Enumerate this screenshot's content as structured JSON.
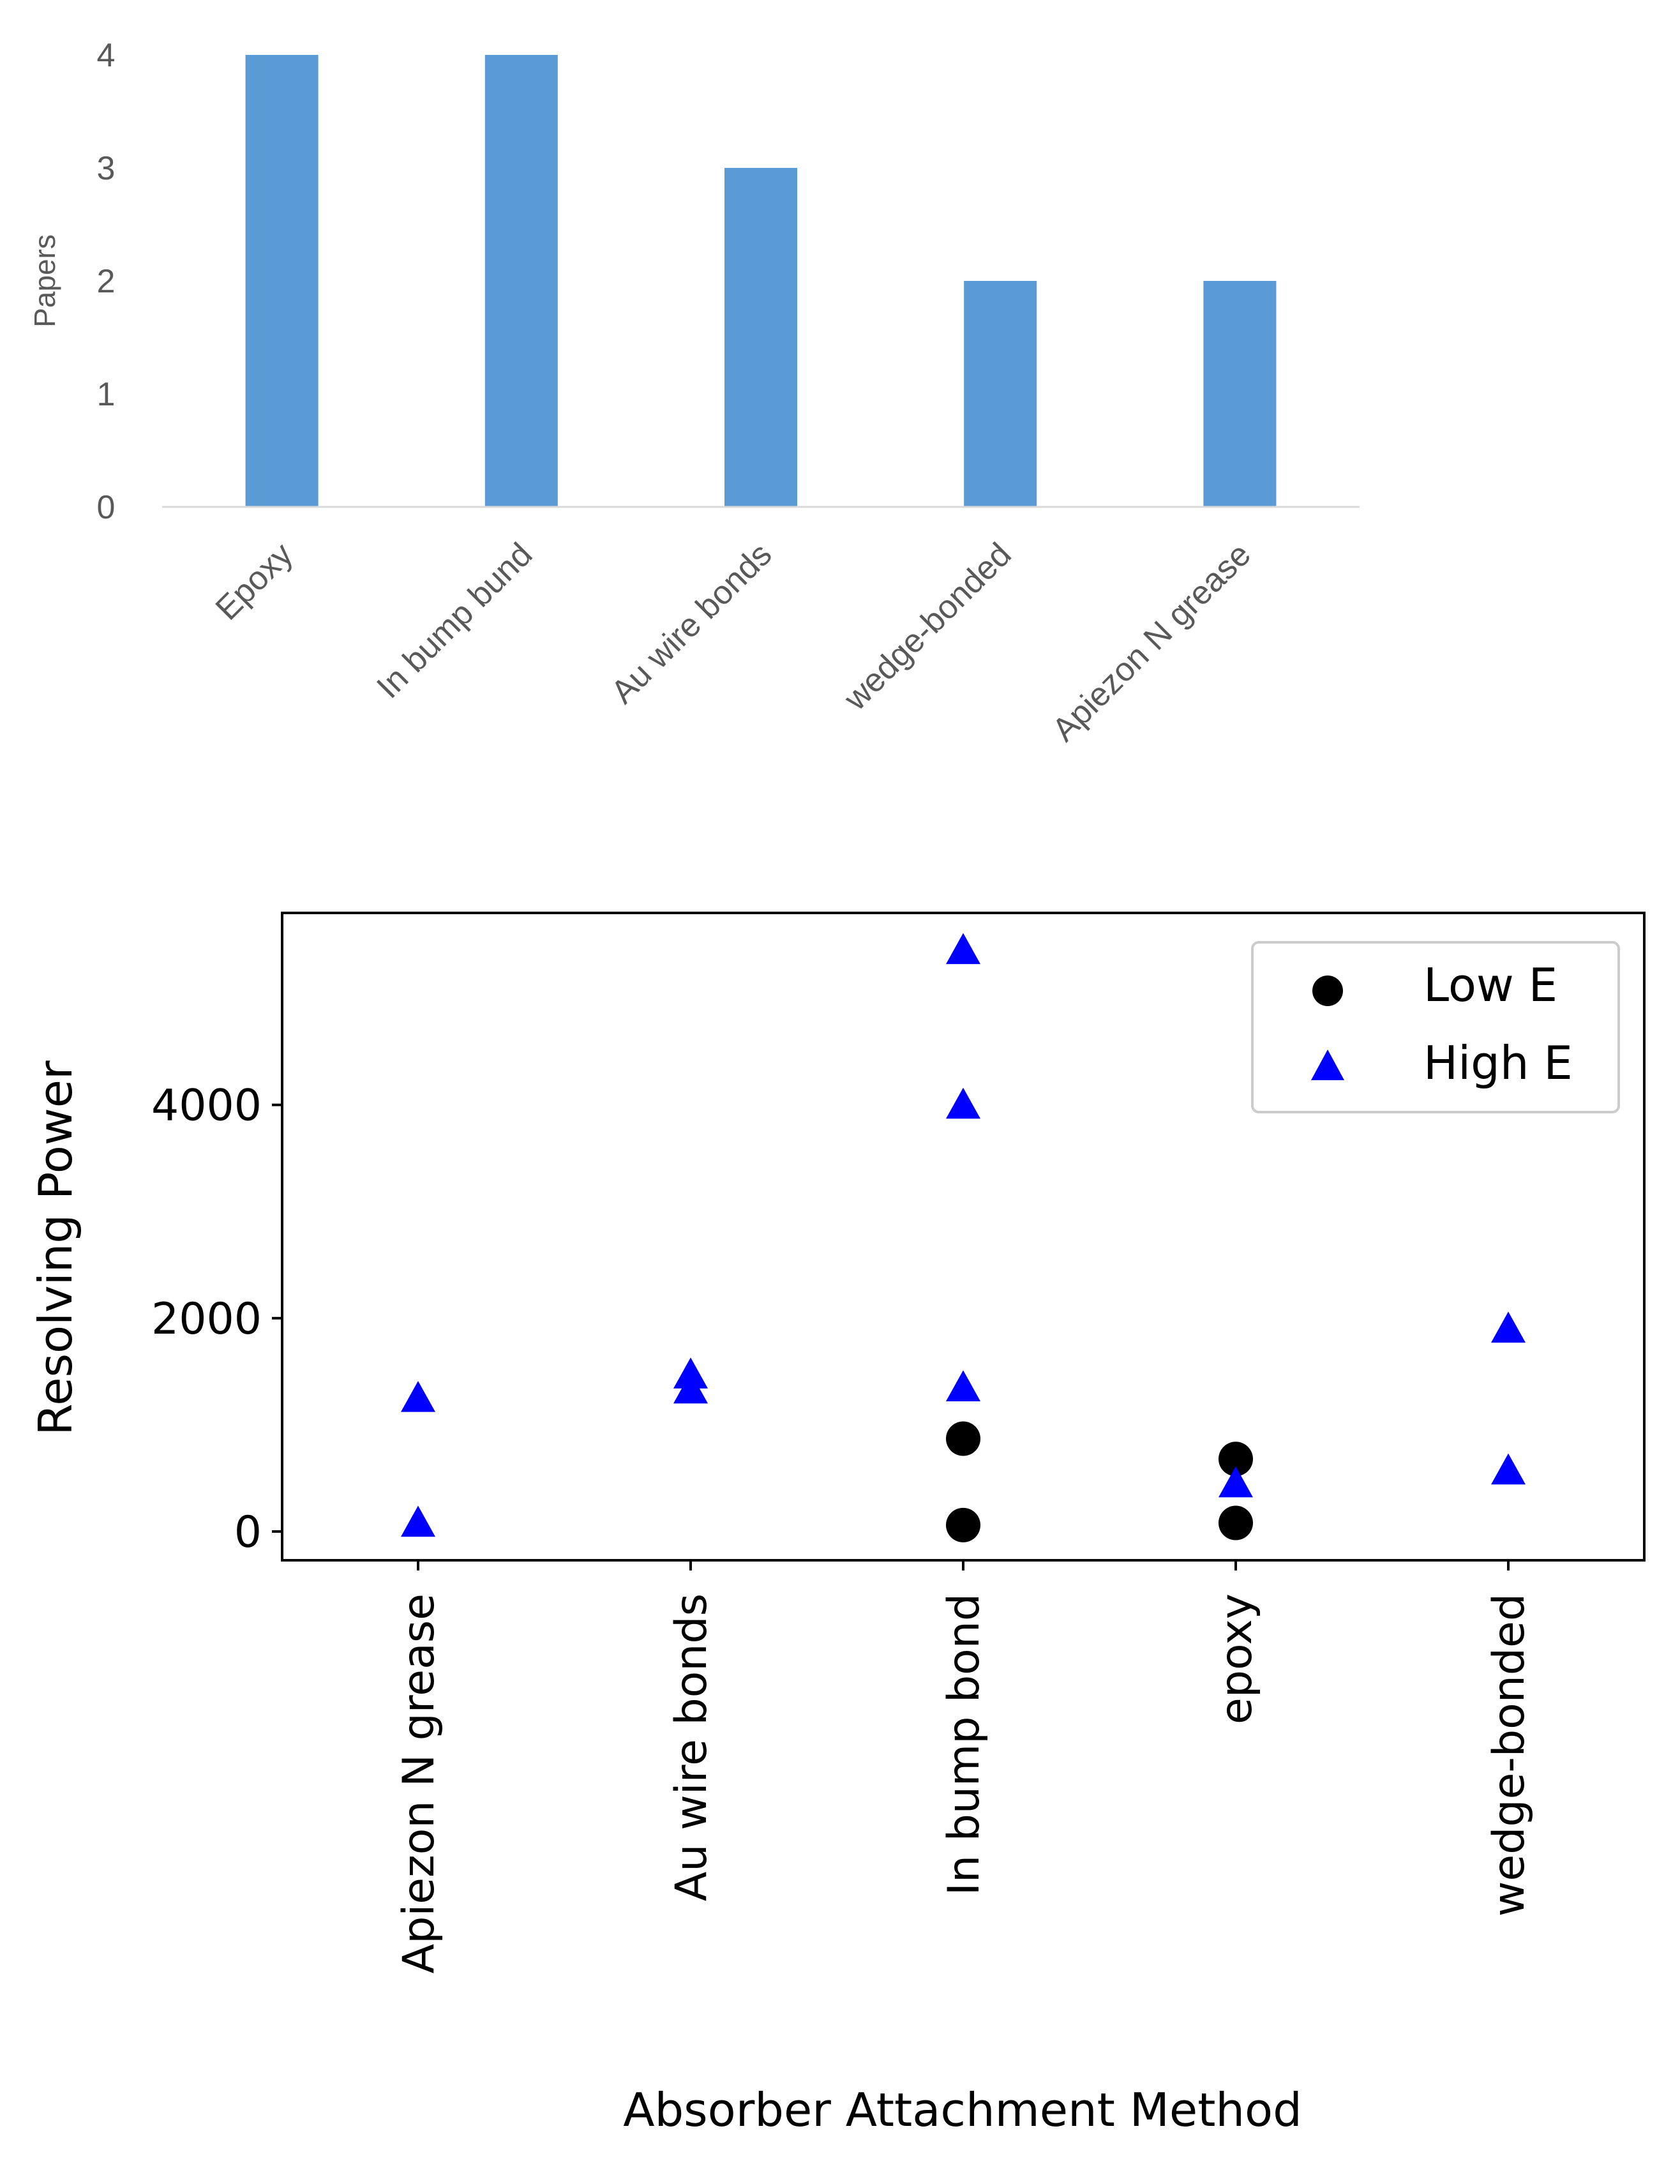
{
  "chart_data": [
    {
      "type": "bar",
      "title": "",
      "xlabel": "",
      "ylabel": "Papers",
      "categories": [
        "Epoxy",
        "In bump bund",
        "Au wire bonds",
        "wedge-bonded",
        "Apiezon N grease"
      ],
      "values": [
        4,
        4,
        3,
        2,
        2
      ],
      "ylim": [
        0,
        4
      ],
      "yticks": [
        "0",
        "1",
        "2",
        "3",
        "4"
      ],
      "grid": false,
      "color": "#5b9bd5"
    },
    {
      "type": "scatter",
      "title": "",
      "xlabel": "Absorber Attachment Method",
      "ylabel": "Resolving Power",
      "categories": [
        "Apiezon N grease",
        "Au wire bonds",
        "In bump bond",
        "epoxy",
        "wedge-bonded"
      ],
      "yticks": [
        "0",
        "2000",
        "4000"
      ],
      "ylim": [
        -270,
        5800
      ],
      "grid": false,
      "legend_position": "top-right",
      "series": [
        {
          "name": "Low E",
          "marker": "circle",
          "color": "#000000",
          "points": [
            {
              "x": "In bump bond",
              "y": 870
            },
            {
              "x": "In bump bond",
              "y": 60
            },
            {
              "x": "epoxy",
              "y": 680
            },
            {
              "x": "epoxy",
              "y": 80
            }
          ]
        },
        {
          "name": "High E",
          "marker": "triangle",
          "color": "#0000ff",
          "points": [
            {
              "x": "Apiezon N grease",
              "y": 1250
            },
            {
              "x": "Apiezon N grease",
              "y": 80
            },
            {
              "x": "Au wire bonds",
              "y": 1470
            },
            {
              "x": "Au wire bonds",
              "y": 1330
            },
            {
              "x": "In bump bond",
              "y": 5450
            },
            {
              "x": "In bump bond",
              "y": 4000
            },
            {
              "x": "In bump bond",
              "y": 1350
            },
            {
              "x": "epoxy",
              "y": 450
            },
            {
              "x": "wedge-bonded",
              "y": 1900
            },
            {
              "x": "wedge-bonded",
              "y": 570
            }
          ]
        }
      ]
    }
  ]
}
